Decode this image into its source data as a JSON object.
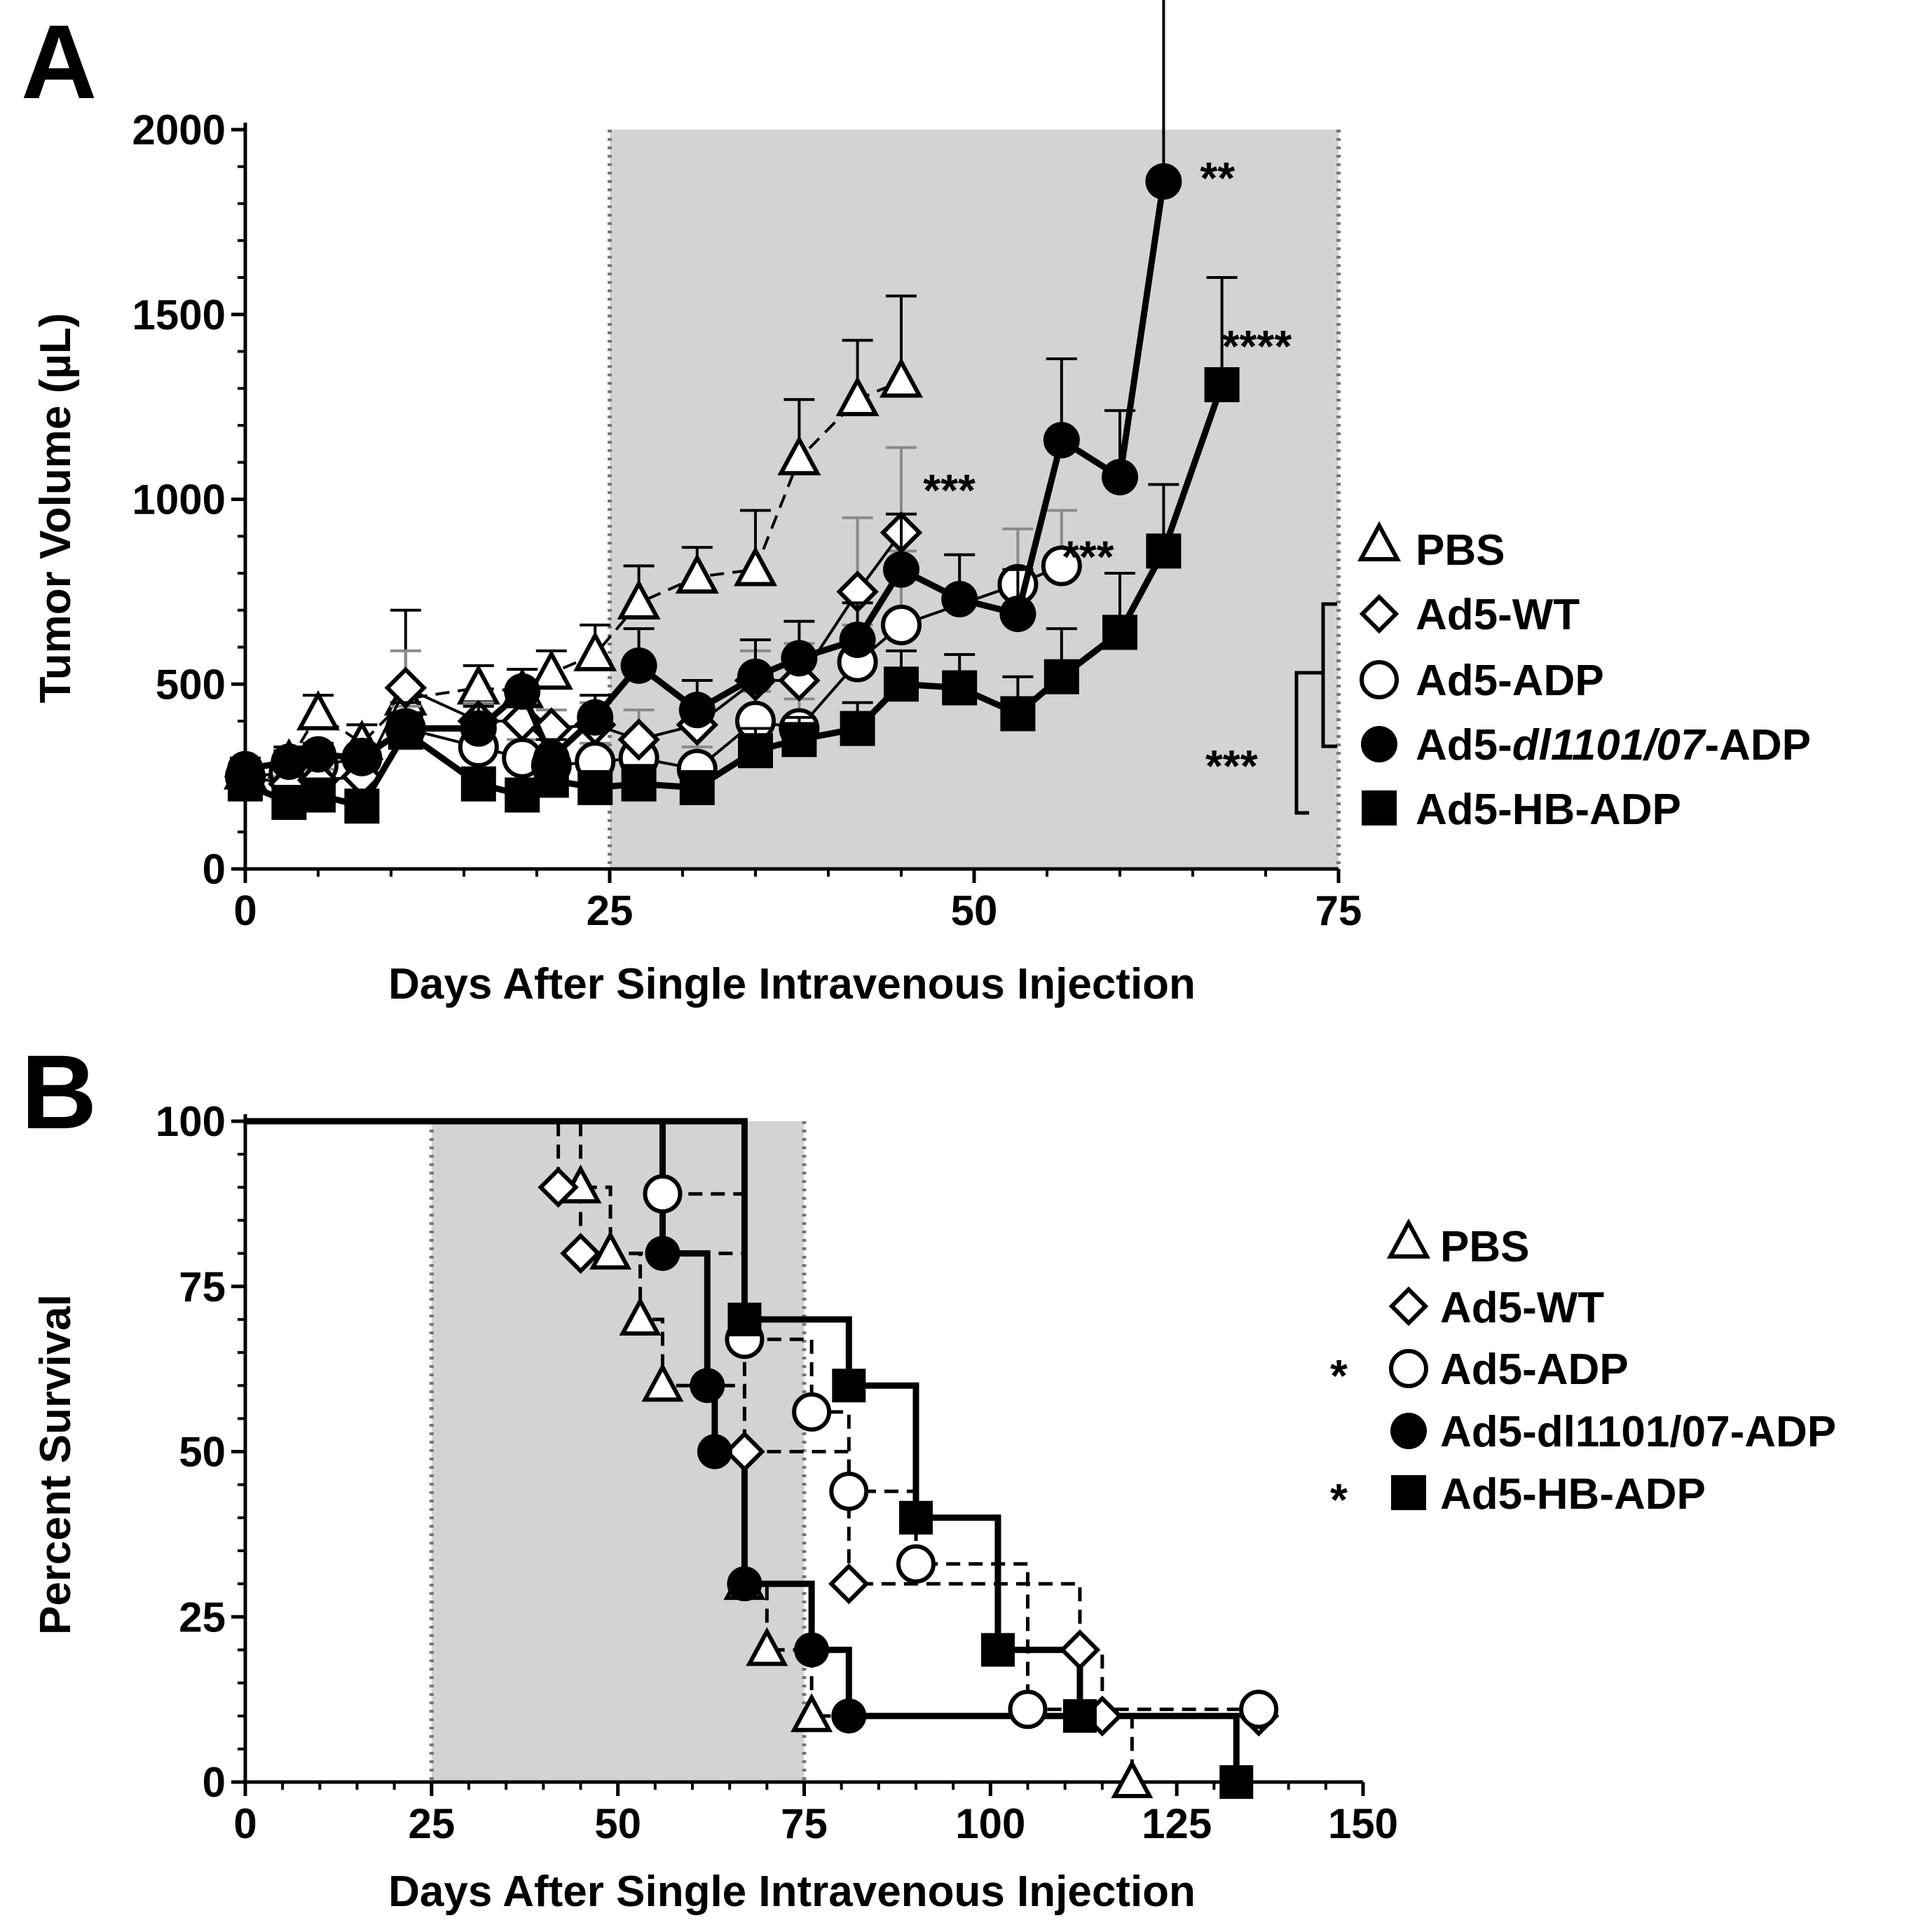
{
  "colors": {
    "shade": "#d3d3d3",
    "ink": "#000000",
    "fill_open": "#ffffff",
    "grey_err": "#8a8a8a"
  },
  "chart_data": [
    {
      "id": "A",
      "panel_label": "A",
      "type": "line",
      "xlabel": "Days After Single Intravenous Injection",
      "ylabel": "Tumor Volume (µL)",
      "xlim": [
        0,
        75
      ],
      "ylim": [
        0,
        2000
      ],
      "xticks": [
        "0",
        "25",
        "50",
        "75"
      ],
      "yticks": [
        "0",
        "500",
        "1000",
        "1500",
        "2000"
      ],
      "shaded_region": [
        25,
        75
      ],
      "series": [
        {
          "name": "PBS",
          "marker": "triangle",
          "fill": "open",
          "line": "dashed",
          "x": [
            0,
            3,
            5,
            8,
            11,
            16,
            19,
            21,
            24,
            27,
            31,
            35,
            38,
            42,
            45
          ],
          "y": [
            260,
            290,
            420,
            340,
            460,
            490,
            480,
            530,
            580,
            720,
            790,
            810,
            1110,
            1270,
            1320
          ],
          "err": [
            30,
            40,
            50,
            50,
            240,
            60,
            60,
            60,
            80,
            100,
            80,
            160,
            160,
            160,
            230
          ]
        },
        {
          "name": "Ad5-WT",
          "marker": "diamond",
          "fill": "open",
          "line": "solid",
          "x": [
            0,
            3,
            5,
            8,
            11,
            16,
            19,
            21,
            24,
            27,
            31,
            35,
            38,
            42,
            45
          ],
          "y": [
            250,
            230,
            240,
            250,
            490,
            400,
            400,
            380,
            390,
            350,
            390,
            510,
            510,
            750,
            910
          ],
          "err": [
            20,
            20,
            30,
            30,
            100,
            50,
            50,
            50,
            60,
            80,
            70,
            80,
            100,
            200,
            230
          ]
        },
        {
          "name": "Ad5-ADP",
          "marker": "circle",
          "fill": "open",
          "line": "solid",
          "x": [
            0,
            3,
            5,
            8,
            11,
            16,
            19,
            21,
            24,
            27,
            31,
            35,
            38,
            42,
            45,
            53,
            56
          ],
          "y": [
            250,
            260,
            280,
            300,
            380,
            330,
            300,
            280,
            290,
            300,
            270,
            400,
            380,
            560,
            660,
            770,
            820
          ],
          "err": [
            20,
            30,
            30,
            30,
            60,
            60,
            50,
            50,
            50,
            60,
            60,
            80,
            80,
            100,
            200,
            150,
            150
          ]
        },
        {
          "name": "Ad5-dl1101/07-ADP",
          "name_display_prefix": "Ad5-",
          "name_display_italic": "dl1101/07",
          "name_display_suffix": "-ADP",
          "marker": "circle",
          "fill": "filled",
          "line": "solid-bold",
          "x": [
            0,
            3,
            5,
            8,
            11,
            16,
            19,
            21,
            24,
            27,
            31,
            35,
            38,
            42,
            45,
            49,
            53,
            56,
            60,
            63
          ],
          "y": [
            270,
            290,
            310,
            300,
            380,
            380,
            480,
            300,
            410,
            550,
            430,
            520,
            570,
            620,
            810,
            730,
            690,
            1160,
            1060,
            1860
          ],
          "err": [
            30,
            30,
            30,
            30,
            70,
            60,
            60,
            50,
            60,
            100,
            80,
            100,
            100,
            100,
            150,
            120,
            120,
            220,
            180,
            640
          ]
        },
        {
          "name": "Ad5-HB-ADP",
          "marker": "square",
          "fill": "filled",
          "line": "solid-bold",
          "x": [
            0,
            3,
            5,
            8,
            11,
            16,
            19,
            21,
            24,
            27,
            31,
            35,
            38,
            42,
            45,
            49,
            53,
            56,
            60,
            63,
            67
          ],
          "y": [
            230,
            180,
            200,
            170,
            370,
            230,
            200,
            240,
            220,
            230,
            220,
            320,
            350,
            380,
            500,
            490,
            420,
            520,
            640,
            860,
            1310
          ],
          "err": [
            20,
            20,
            20,
            20,
            50,
            40,
            40,
            40,
            40,
            50,
            40,
            60,
            60,
            70,
            90,
            90,
            100,
            130,
            160,
            180,
            290
          ]
        }
      ],
      "annotations": [
        {
          "text": "**",
          "x": 65.5,
          "y": 1875
        },
        {
          "text": "****",
          "x": 67,
          "y": 1420
        },
        {
          "text": "***",
          "x": 46.5,
          "y": 1030
        },
        {
          "text": "***",
          "x": 56,
          "y": 850
        },
        {
          "text": "***",
          "x": 0,
          "y": 0,
          "where": "legend-bracket"
        }
      ]
    },
    {
      "id": "B",
      "panel_label": "B",
      "type": "line",
      "subtype": "kaplan-meier",
      "xlabel": "Days After Single Intravenous Injection",
      "ylabel": "Percent Survival",
      "xlim": [
        0,
        150
      ],
      "ylim": [
        0,
        100
      ],
      "xticks": [
        "0",
        "25",
        "50",
        "75",
        "100",
        "125",
        "150"
      ],
      "yticks": [
        "0",
        "25",
        "50",
        "75",
        "100"
      ],
      "shaded_region": [
        25,
        75
      ],
      "series": [
        {
          "name": "PBS",
          "marker": "triangle",
          "fill": "open",
          "line": "dashed",
          "sig": "",
          "x": [
            0,
            45,
            49,
            53,
            56,
            67,
            70,
            76,
            119
          ],
          "y": [
            100,
            90,
            80,
            70,
            60,
            30,
            20,
            10,
            0
          ]
        },
        {
          "name": "Ad5-WT",
          "marker": "diamond",
          "fill": "open",
          "line": "dashed",
          "sig": "",
          "x": [
            0,
            42,
            45,
            67,
            81,
            112,
            115,
            136
          ],
          "y": [
            100,
            90,
            80,
            50,
            30,
            20,
            10,
            10
          ]
        },
        {
          "name": "Ad5-ADP",
          "marker": "circle",
          "fill": "open",
          "line": "dashed",
          "sig": "*",
          "x": [
            0,
            56,
            67,
            76,
            81,
            90,
            105,
            136
          ],
          "y": [
            100,
            89,
            67,
            56,
            44,
            33,
            11,
            11
          ]
        },
        {
          "name": "Ad5-dl1101/07-ADP",
          "marker": "circle",
          "fill": "filled",
          "line": "solid-bold",
          "sig": "",
          "x": [
            0,
            56,
            62,
            63,
            67,
            76,
            81
          ],
          "y": [
            100,
            80,
            60,
            50,
            30,
            20,
            10
          ]
        },
        {
          "name": "Ad5-HB-ADP",
          "marker": "square",
          "fill": "filled",
          "line": "solid-bold",
          "sig": "*",
          "x": [
            0,
            67,
            81,
            90,
            101,
            112,
            133
          ],
          "y": [
            100,
            70,
            60,
            40,
            20,
            10,
            0
          ]
        }
      ],
      "km_lines": [
        {
          "series": 0,
          "dash": true,
          "bold": false,
          "x": [
            0,
            45,
            49,
            53,
            56,
            67,
            70,
            76,
            119
          ],
          "y": [
            100,
            90,
            80,
            70,
            60,
            30,
            20,
            10,
            0
          ]
        },
        {
          "series": 1,
          "dash": true,
          "bold": false,
          "x": [
            0,
            42,
            45,
            67,
            81,
            112,
            115,
            136
          ],
          "y": [
            100,
            90,
            80,
            50,
            30,
            20,
            10,
            10
          ]
        },
        {
          "series": 2,
          "dash": true,
          "bold": false,
          "x": [
            0,
            56,
            67,
            76,
            81,
            90,
            105,
            136
          ],
          "y": [
            100,
            89,
            67,
            56,
            44,
            33,
            11,
            11
          ]
        },
        {
          "series": 3,
          "dash": false,
          "bold": true,
          "x": [
            0,
            56,
            62,
            63,
            67,
            76,
            81,
            112
          ],
          "y": [
            100,
            80,
            60,
            50,
            30,
            20,
            10,
            10
          ]
        },
        {
          "series": 4,
          "dash": false,
          "bold": true,
          "x": [
            0,
            67,
            81,
            90,
            101,
            112,
            133
          ],
          "y": [
            100,
            70,
            60,
            40,
            20,
            10,
            0
          ]
        }
      ]
    }
  ],
  "legend_A": {
    "items": [
      "PBS",
      "Ad5-WT",
      "Ad5-ADP",
      "Ad5-",
      "dl1101/07",
      "-ADP",
      "Ad5-HB-ADP"
    ],
    "bracket_sig": "***"
  },
  "legend_B": {
    "items": [
      "PBS",
      "Ad5-WT",
      "Ad5-ADP",
      "Ad5-dl1101/07-ADP",
      "Ad5-HB-ADP"
    ],
    "stars": [
      "*",
      "*"
    ]
  }
}
